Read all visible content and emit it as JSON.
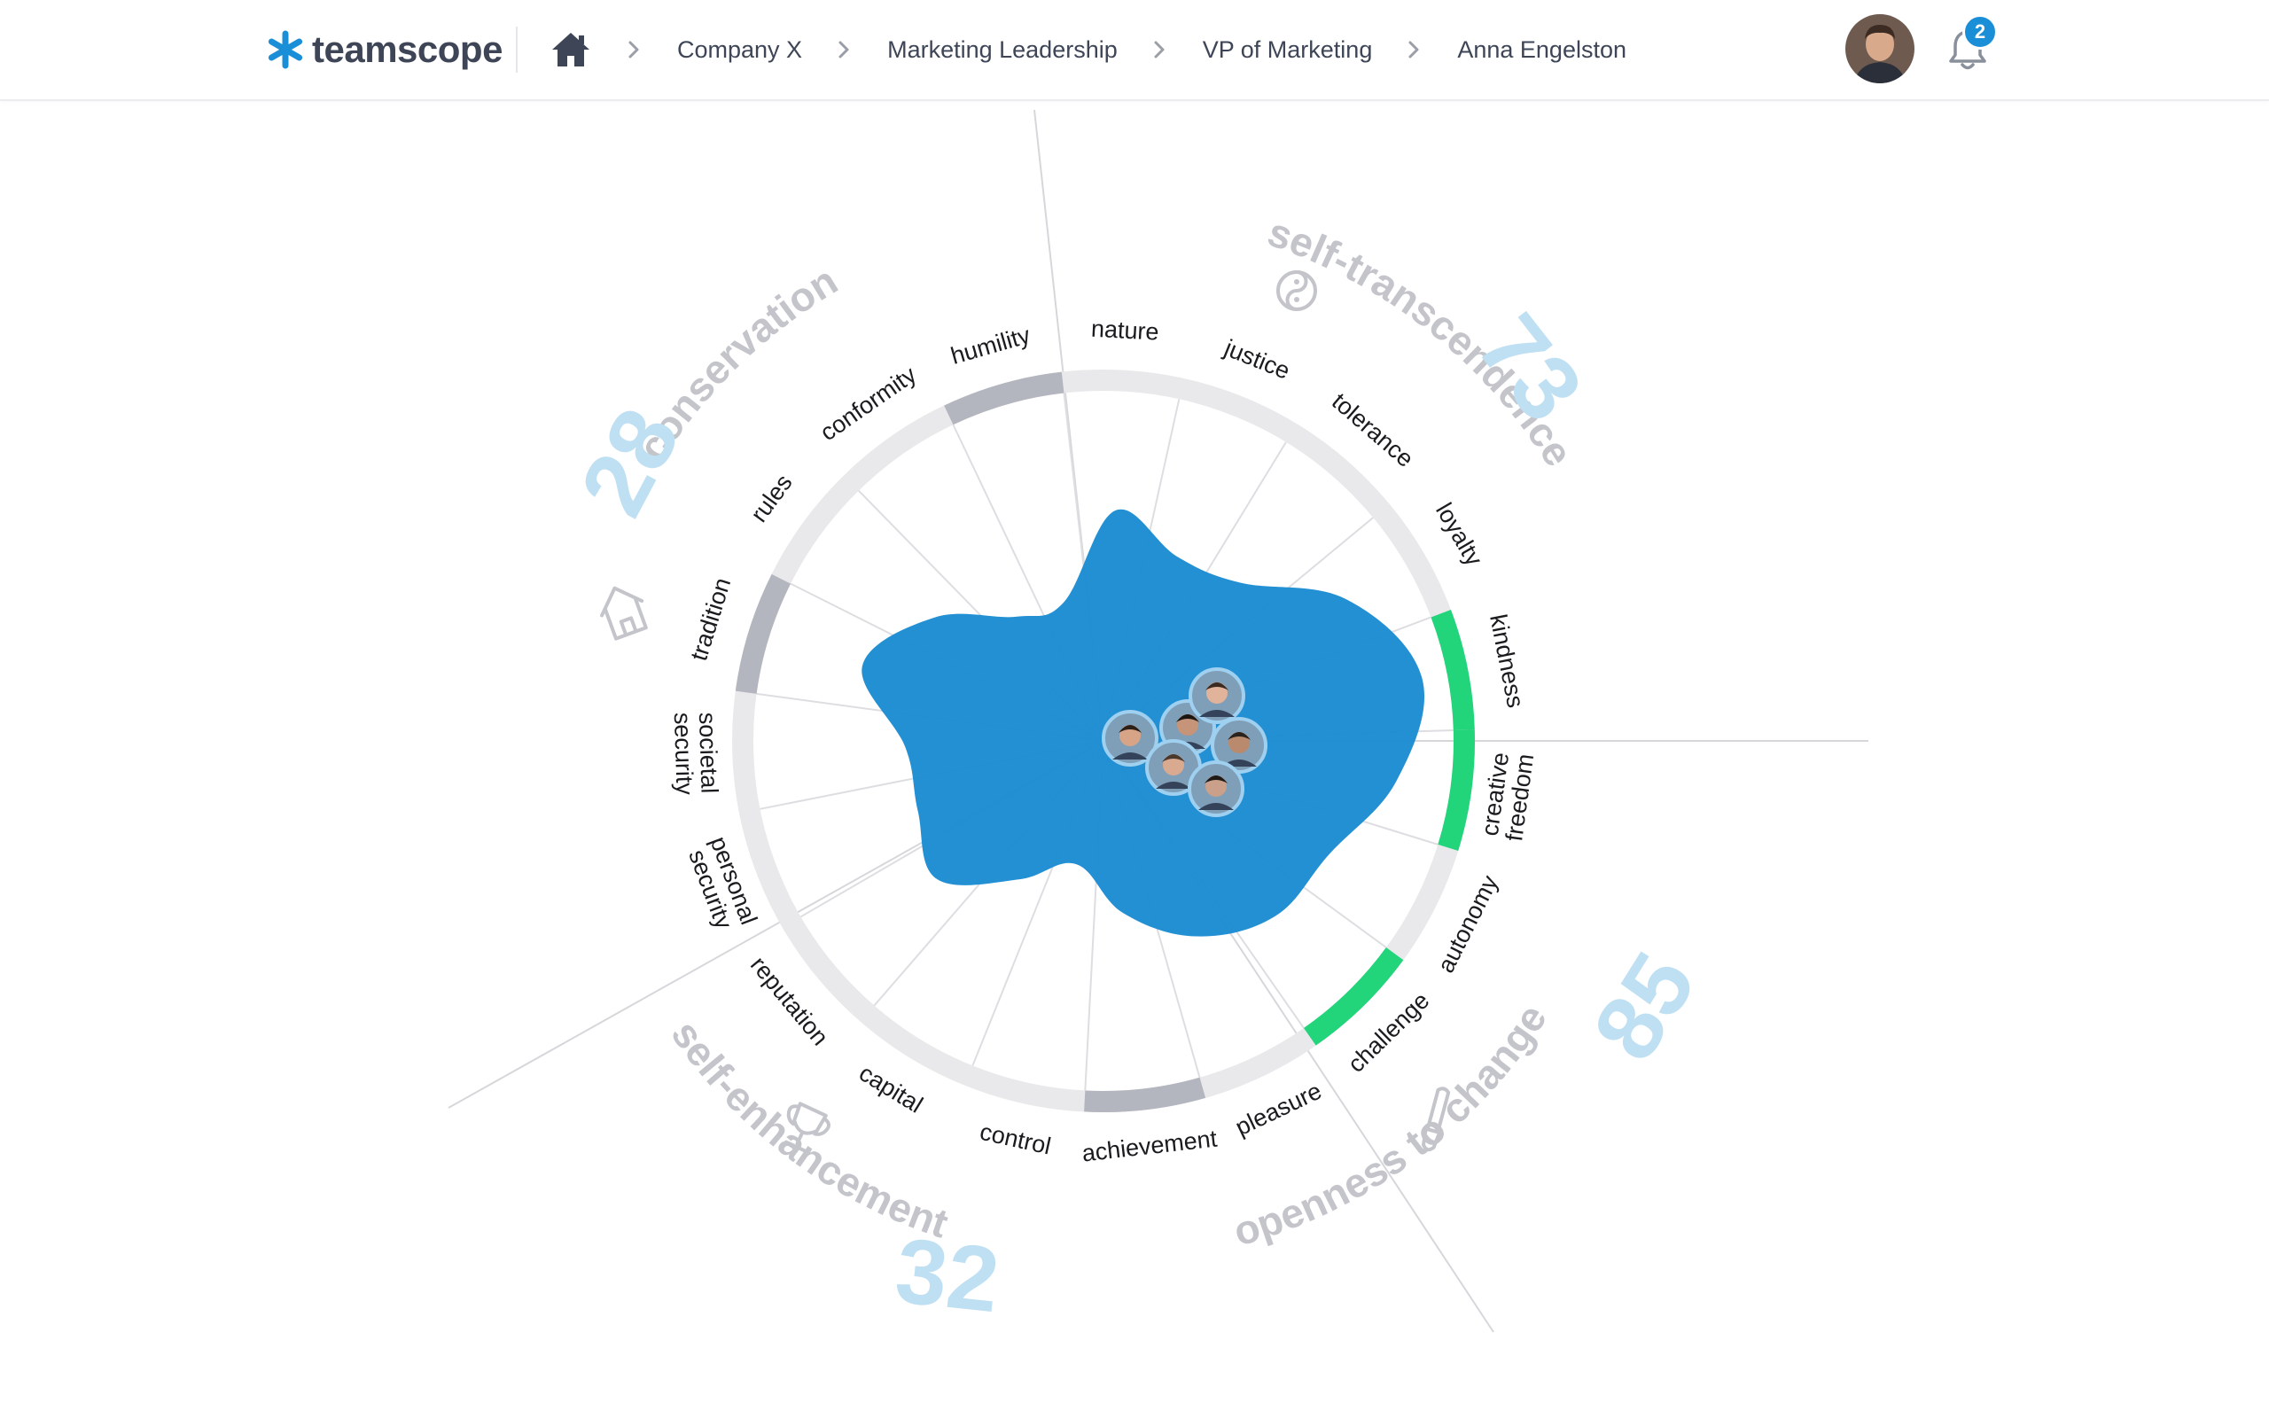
{
  "app": {
    "logo_text": "teamscope",
    "brand_color": "#1a8fd8"
  },
  "breadcrumb": {
    "home_icon": "home-icon",
    "items": [
      "Company X",
      "Marketing Leadership",
      "VP of Marketing",
      "Anna Engelston"
    ]
  },
  "header": {
    "notification_count": "2"
  },
  "values": [
    {
      "name": "nature",
      "lines": [
        "nature"
      ]
    },
    {
      "name": "justice",
      "lines": [
        "justice"
      ]
    },
    {
      "name": "tolerance",
      "lines": [
        "tolerance"
      ]
    },
    {
      "name": "loyalty",
      "lines": [
        "loyalty"
      ]
    },
    {
      "name": "kindness",
      "lines": [
        "kindness"
      ]
    },
    {
      "name": "creative freedom",
      "lines": [
        "creative",
        "freedom"
      ]
    },
    {
      "name": "autonomy",
      "lines": [
        "autonomy"
      ]
    },
    {
      "name": "challenge",
      "lines": [
        "challenge"
      ]
    },
    {
      "name": "pleasure",
      "lines": [
        "pleasure"
      ]
    },
    {
      "name": "achievement",
      "lines": [
        "achievement"
      ]
    },
    {
      "name": "control",
      "lines": [
        "control"
      ]
    },
    {
      "name": "capital",
      "lines": [
        "capital"
      ]
    },
    {
      "name": "reputation",
      "lines": [
        "reputation"
      ]
    },
    {
      "name": "personal security",
      "lines": [
        "personal",
        "security"
      ]
    },
    {
      "name": "societal security",
      "lines": [
        "societal",
        "security"
      ]
    },
    {
      "name": "tradition",
      "lines": [
        "tradition"
      ]
    },
    {
      "name": "rules",
      "lines": [
        "rules"
      ]
    },
    {
      "name": "conformity",
      "lines": [
        "conformity"
      ]
    },
    {
      "name": "humility",
      "lines": [
        "humility"
      ]
    }
  ],
  "highlights": {
    "green": [
      "kindness",
      "creative freedom",
      "challenge"
    ],
    "gray": [
      "humility",
      "tradition",
      "achievement"
    ],
    "green_color": "#22d47a",
    "gray_color": "#b4b6bf",
    "ring_color": "#e9e9ec"
  },
  "groups": [
    {
      "name": "self-transcendence",
      "score": "73",
      "icon": "yin-yang-icon"
    },
    {
      "name": "openness to change",
      "score": "85",
      "icon": "brush-icon"
    },
    {
      "name": "self-enhancement",
      "score": "32",
      "icon": "trophy-icon"
    },
    {
      "name": "conservation",
      "score": "28",
      "icon": "house-icon"
    }
  ],
  "chart_data": {
    "type": "radar",
    "fill_color": "#1a8bd1",
    "categories": [
      "nature",
      "justice",
      "tolerance",
      "loyalty",
      "kindness",
      "creative freedom",
      "autonomy",
      "challenge",
      "pleasure",
      "achievement",
      "control",
      "capital",
      "reputation",
      "personal security",
      "societal security",
      "tradition",
      "rules",
      "conformity",
      "humility"
    ],
    "values": [
      0.64,
      0.55,
      0.58,
      0.78,
      0.9,
      0.82,
      0.7,
      0.68,
      0.6,
      0.48,
      0.35,
      0.45,
      0.6,
      0.55,
      0.55,
      0.7,
      0.58,
      0.42,
      0.4
    ],
    "team_members": 6
  }
}
